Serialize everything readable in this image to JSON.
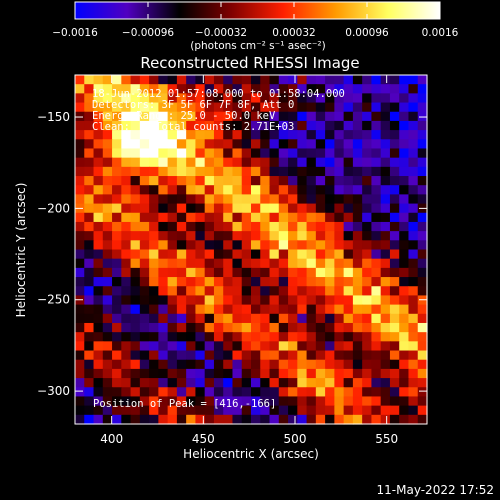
{
  "chart_data": {
    "type": "heatmap",
    "title": "Reconstructed RHESSI Image",
    "xlabel": "Heliocentric X (arcsec)",
    "ylabel": "Heliocentric Y (arcsec)",
    "xlim": [
      380,
      572
    ],
    "ylim": [
      -318,
      -127
    ],
    "x_ticks": [
      400,
      450,
      500,
      550
    ],
    "y_ticks": [
      -150,
      -200,
      -250,
      -300
    ],
    "x_tick_labels": [
      "400",
      "450",
      "500",
      "550"
    ],
    "y_tick_labels": [
      "−150",
      "−200",
      "−250",
      "−300"
    ],
    "colorbar": {
      "range": [
        -0.0016,
        0.0016
      ],
      "ticks": [
        -0.0016,
        -0.00096,
        -0.00032,
        0.00032,
        0.00096,
        0.0016
      ],
      "tick_labels": [
        "−0.0016",
        "−0.00096",
        "−0.00032",
        "0.00032",
        "0.00096",
        "0.0016"
      ],
      "units_label": "(photons cm⁻² s⁻¹ asec⁻²)",
      "colors": [
        "#0000ff",
        "#5000c0",
        "#000000",
        "#800000",
        "#ff2000",
        "#ff9a00",
        "#ffff60",
        "#ffffff"
      ]
    },
    "annotations": [
      "18-Jun-2012 01:57:08.000 to 01:58:04.000",
      "Detectors: 3F 5F 6F 7F 8F, Att 0",
      "Energy Range: 25.0 - 50.0 keV",
      "Clean:    Total counts: 2.71E+03",
      "Position of Peak = [416,-166]"
    ],
    "peak": [
      416,
      -166
    ],
    "grid": false
  },
  "footer_timestamp": "11-May-2022 17:52"
}
